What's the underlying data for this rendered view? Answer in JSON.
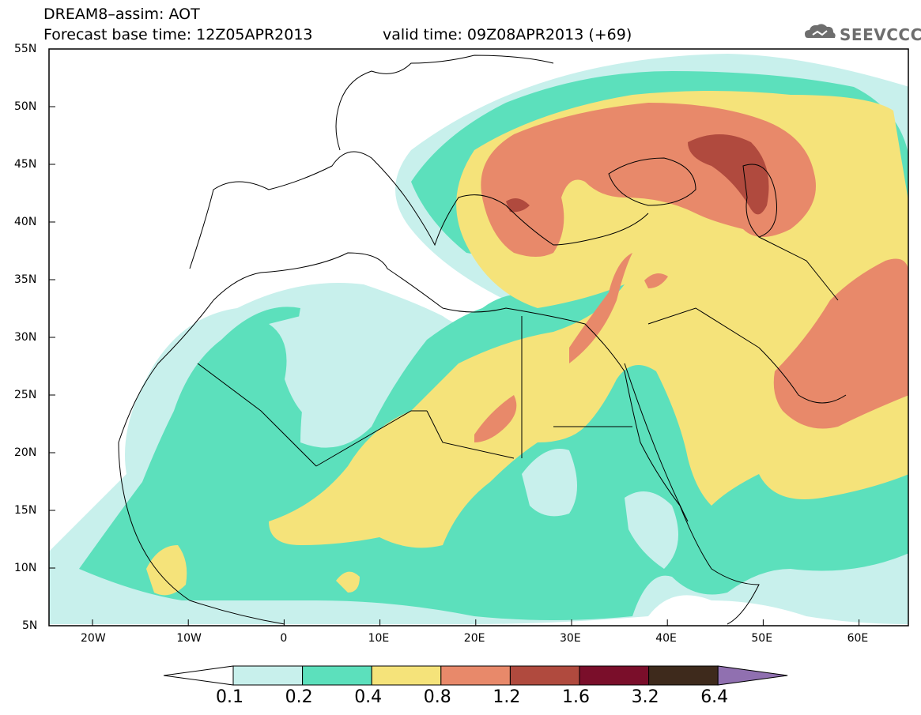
{
  "title": {
    "line1": "DREAM8–assim: AOT",
    "line2": "Forecast base time: 12Z05APR2013",
    "valid": "valid time: 09Z08APR2013 (+69)"
  },
  "logo": {
    "text": "SEEVCCC"
  },
  "axes": {
    "lat_labels": [
      "55N",
      "50N",
      "45N",
      "40N",
      "35N",
      "30N",
      "25N",
      "20N",
      "15N",
      "10N",
      "5N"
    ],
    "lon_labels": [
      "20W",
      "10W",
      "0",
      "10E",
      "20E",
      "30E",
      "40E",
      "50E",
      "60E"
    ]
  },
  "colorbar": {
    "labels": [
      "0.1",
      "0.2",
      "0.4",
      "0.8",
      "1.2",
      "1.6",
      "3.2",
      "6.4"
    ],
    "colors": [
      "#ffffff",
      "#c8f0ec",
      "#5ce0bc",
      "#f5e37a",
      "#e8896a",
      "#b04a3e",
      "#7a0e2a",
      "#3e2a1c",
      "#9070b0"
    ]
  }
}
